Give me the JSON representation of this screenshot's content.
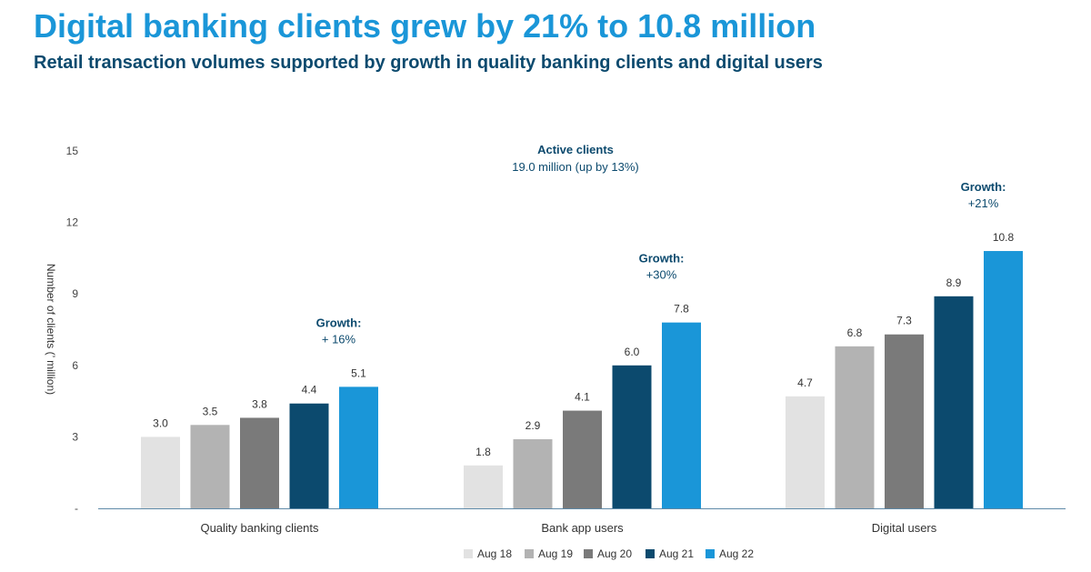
{
  "header": {
    "title": "Digital banking clients grew by 21% to 10.8 million",
    "subtitle": "Retail transaction volumes supported by growth in quality banking clients and digital users"
  },
  "chart_data": {
    "type": "bar",
    "ylabel": "Number of clients (’ million)",
    "ylim": [
      0,
      15
    ],
    "yticks": [
      {
        "value": 0,
        "label": "-"
      },
      {
        "value": 3,
        "label": "3"
      },
      {
        "value": 6,
        "label": "6"
      },
      {
        "value": 9,
        "label": "9"
      },
      {
        "value": 12,
        "label": "12"
      },
      {
        "value": 15,
        "label": "15"
      }
    ],
    "categories": [
      "Quality banking clients",
      "Bank app users",
      "Digital users"
    ],
    "series": [
      {
        "name": "Aug 18",
        "color": "#e2e2e2",
        "values": [
          3.0,
          1.8,
          4.7
        ]
      },
      {
        "name": "Aug 19",
        "color": "#b3b3b3",
        "values": [
          3.5,
          2.9,
          6.8
        ]
      },
      {
        "name": "Aug 20",
        "color": "#7a7a7a",
        "values": [
          3.8,
          4.1,
          7.3
        ]
      },
      {
        "name": "Aug 21",
        "color": "#0c4a6e",
        "values": [
          4.4,
          6.0,
          8.9
        ]
      },
      {
        "name": "Aug 22",
        "color": "#1a96d8",
        "values": [
          5.1,
          7.8,
          10.8
        ]
      }
    ],
    "value_labels": [
      [
        "3.0",
        "3.5",
        "3.8",
        "4.4",
        "5.1"
      ],
      [
        "1.8",
        "2.9",
        "4.1",
        "6.0",
        "7.8"
      ],
      [
        "4.7",
        "6.8",
        "7.3",
        "8.9",
        "10.8"
      ]
    ],
    "growth_annotations": [
      {
        "label": "Growth:",
        "value": "+ 16%"
      },
      {
        "label": "Growth:",
        "value": "+30%"
      },
      {
        "label": "Growth:",
        "value": "+21%"
      }
    ],
    "center_annotation": {
      "title": "Active clients",
      "text": "19.0 million (up by 13%)"
    },
    "legend_position": "bottom-center",
    "grid": false
  }
}
